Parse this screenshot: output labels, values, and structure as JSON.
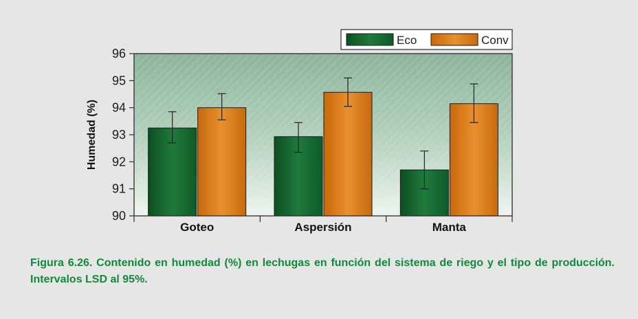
{
  "chart_data": {
    "type": "bar",
    "ylabel": "Humedad (%)",
    "xlabel": "",
    "ylim": [
      90,
      96
    ],
    "yticks": [
      "90",
      "91",
      "92",
      "93",
      "94",
      "95",
      "96"
    ],
    "categories": [
      "Goteo",
      "Aspersión",
      "Manta"
    ],
    "series": [
      {
        "name": "Eco",
        "values": [
          93.25,
          92.93,
          91.7
        ],
        "error_low": [
          92.7,
          92.35,
          91.0
        ],
        "error_high": [
          93.85,
          93.45,
          92.4
        ]
      },
      {
        "name": "Conv",
        "values": [
          94.0,
          94.57,
          94.15
        ],
        "error_low": [
          93.55,
          94.05,
          93.45
        ],
        "error_high": [
          94.52,
          95.1,
          94.88
        ]
      }
    ],
    "grid": false,
    "legend_position": "top-right",
    "colors": {
      "eco": "#1f7a3c",
      "conv": "#e07f1a"
    }
  },
  "caption": {
    "text": "Figura 6.26. Contenido en humedad (%) en lechugas en función del sistema de riego y el tipo de producción. Intervalos LSD al 95%."
  }
}
